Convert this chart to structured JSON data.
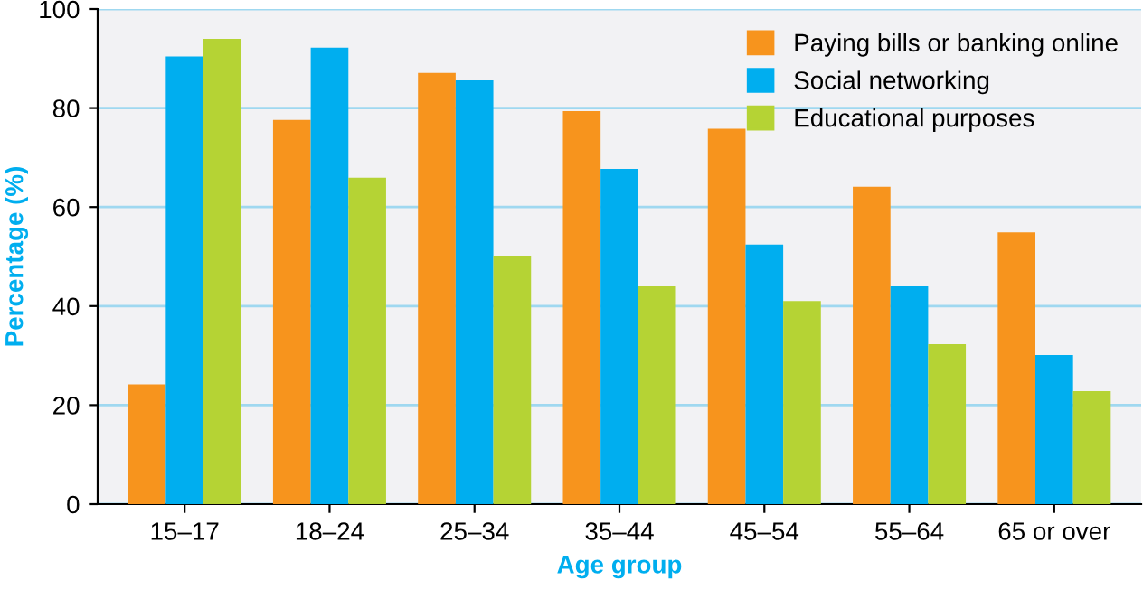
{
  "chart_data": {
    "type": "bar",
    "xlabel": "Age group",
    "ylabel": "Percentage (%)",
    "categories": [
      "15–17",
      "18–24",
      "25–34",
      "35–44",
      "45–54",
      "55–64",
      "65 or over"
    ],
    "series": [
      {
        "name": "Paying bills or banking online",
        "color": "#f7941d",
        "values": [
          24.2,
          77.6,
          87.1,
          79.4,
          75.8,
          64.1,
          54.9
        ]
      },
      {
        "name": "Social networking",
        "color": "#00aeef",
        "values": [
          90.4,
          92.2,
          85.6,
          67.7,
          52.4,
          44.0,
          30.1
        ]
      },
      {
        "name": "Educational purposes",
        "color": "#b5d334",
        "values": [
          94.0,
          65.9,
          50.2,
          44.0,
          41.0,
          32.3,
          22.8
        ]
      }
    ],
    "ylim": [
      0,
      100
    ],
    "yticks": [
      0,
      20,
      40,
      60,
      80,
      100
    ],
    "grid": "y",
    "legend": "top right"
  }
}
